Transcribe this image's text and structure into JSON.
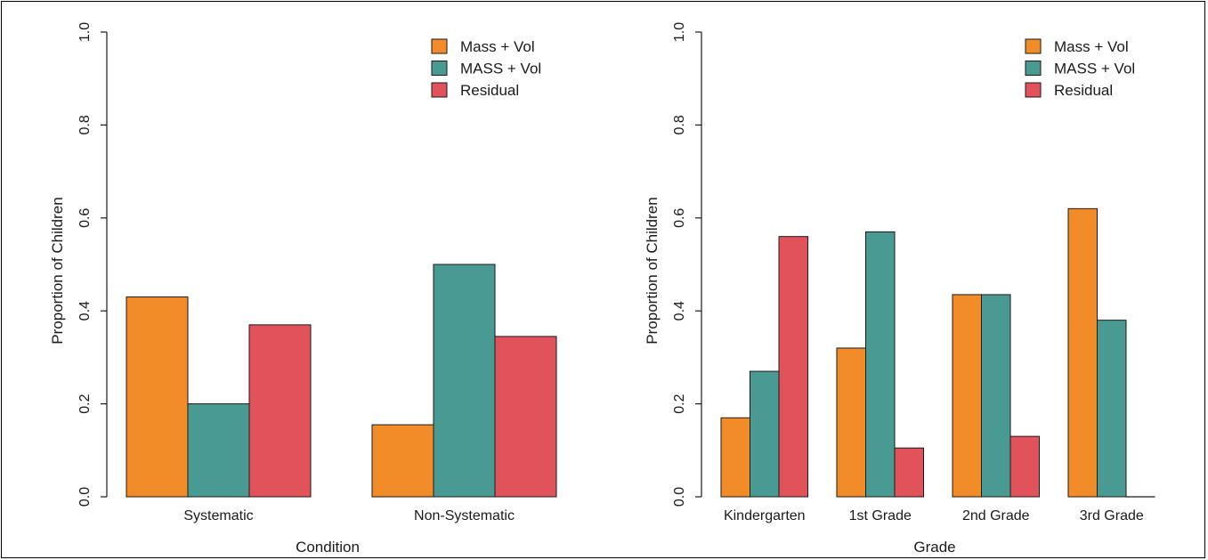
{
  "colors": {
    "mass_vol": "#F28C28",
    "MASS_vol": "#4A9A94",
    "residual": "#E1525A",
    "axis": "#1a1a1a"
  },
  "chart_data": [
    {
      "type": "bar",
      "xlabel": "Condition",
      "ylabel": "Proportion of Children",
      "ylim": [
        0,
        1
      ],
      "yticks": [
        "0.0",
        "0.2",
        "0.4",
        "0.6",
        "0.8",
        "1.0"
      ],
      "categories": [
        "Systematic",
        "Non-Systematic"
      ],
      "series": [
        {
          "name": "Mass + Vol",
          "values": [
            0.43,
            0.155
          ]
        },
        {
          "name": "MASS + Vol",
          "values": [
            0.2,
            0.5
          ]
        },
        {
          "name": "Residual",
          "values": [
            0.37,
            0.345
          ]
        }
      ],
      "legend": "top-right",
      "grid": false
    },
    {
      "type": "bar",
      "xlabel": "Grade",
      "ylabel": "Proportion of Children",
      "ylim": [
        0,
        1
      ],
      "yticks": [
        "0.0",
        "0.2",
        "0.4",
        "0.6",
        "0.8",
        "1.0"
      ],
      "categories": [
        "Kindergarten",
        "1st Grade",
        "2nd Grade",
        "3rd Grade"
      ],
      "series": [
        {
          "name": "Mass + Vol",
          "values": [
            0.17,
            0.32,
            0.435,
            0.62
          ]
        },
        {
          "name": "MASS + Vol",
          "values": [
            0.27,
            0.57,
            0.435,
            0.38
          ]
        },
        {
          "name": "Residual",
          "values": [
            0.56,
            0.105,
            0.13,
            0.0
          ]
        }
      ],
      "legend": "top-right",
      "grid": false
    }
  ]
}
